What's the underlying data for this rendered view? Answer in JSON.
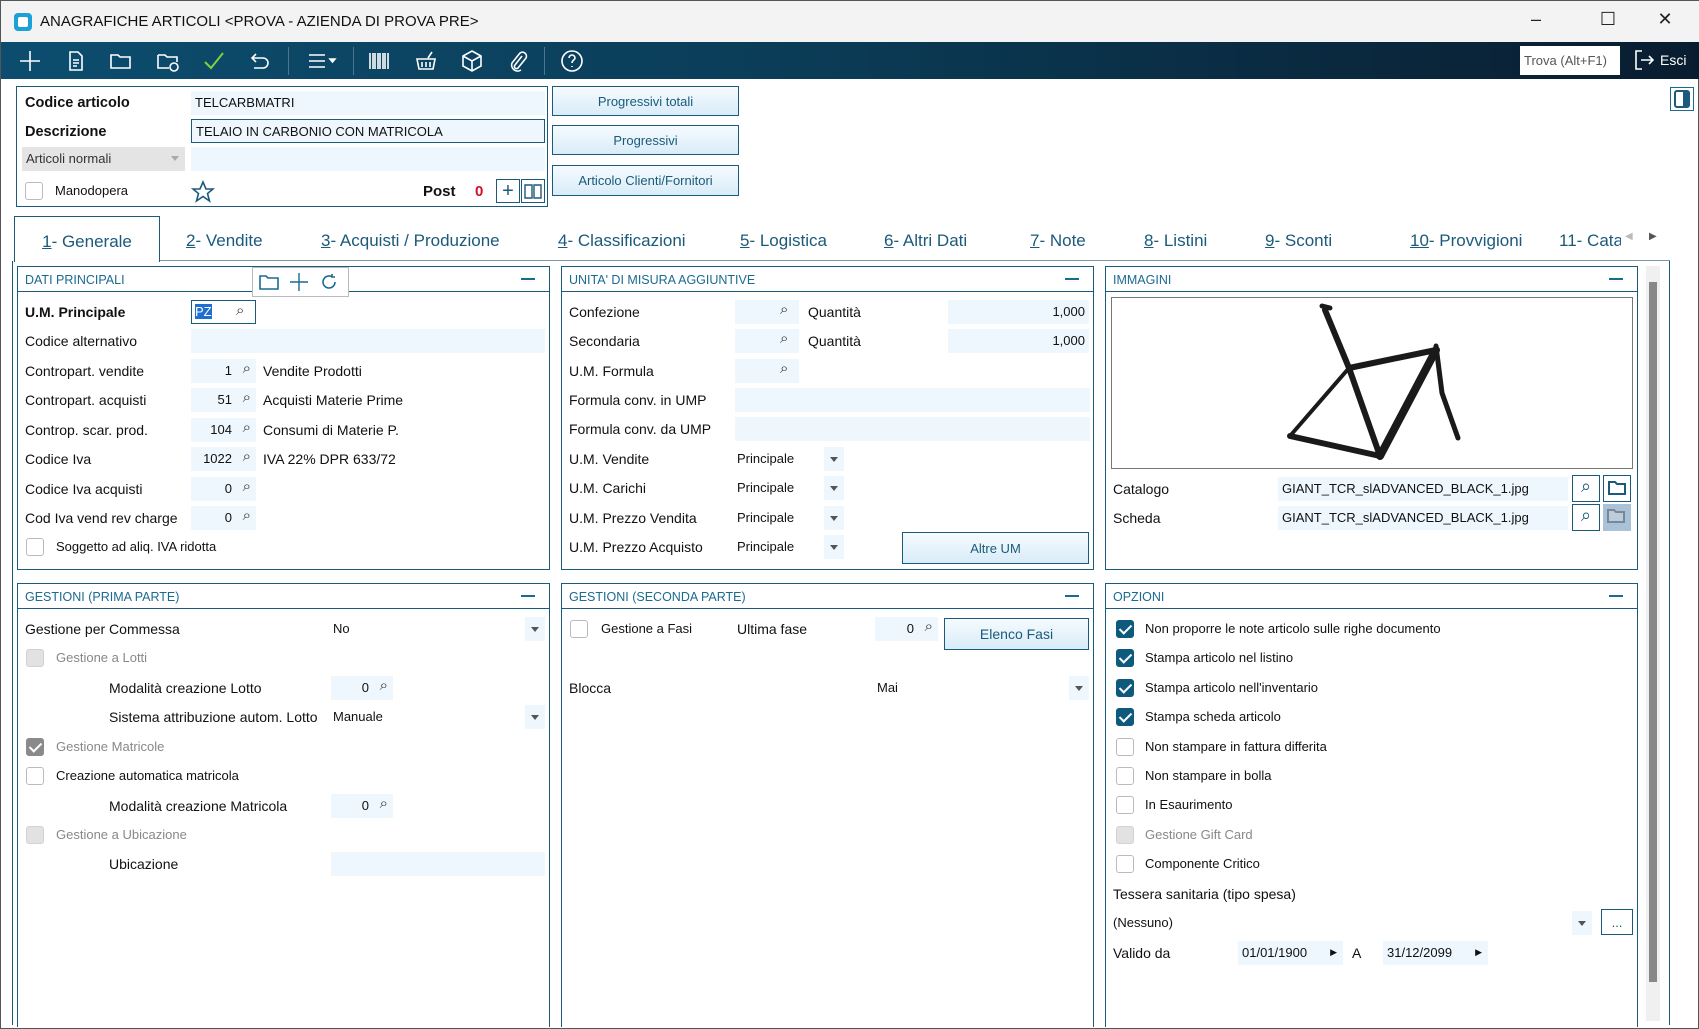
{
  "window": {
    "title": "ANAGRAFICHE ARTICOLI <PROVA - AZIENDA DI PROVA PRE>",
    "minimize": "–",
    "maximize": "☐",
    "close": "✕"
  },
  "toolbar": {
    "search_placeholder": "Trova (Alt+F1)",
    "exit_label": "Esci"
  },
  "header": {
    "code_label": "Codice articolo",
    "code_value": "TELCARBMATRI",
    "desc_label": "Descrizione",
    "desc_value": "TELAIO IN CARBONIO CON MATRICOLA",
    "type_value": "Articoli normali",
    "labor_label": "Manodopera",
    "labor_checked": false,
    "post_label": "Post",
    "post_count": "0",
    "buttons": [
      "Progressivi totali",
      "Progressivi",
      "Articolo Clienti/Fornitori"
    ]
  },
  "tabs": [
    {
      "key": "1",
      "label": " - Generale",
      "active": true
    },
    {
      "key": "2",
      "label": " - Vendite"
    },
    {
      "key": "3",
      "label": " - Acquisti / Produzione"
    },
    {
      "key": "4",
      "label": " - Classificazioni"
    },
    {
      "key": "5",
      "label": " - Logistica"
    },
    {
      "key": "6",
      "label": " - Altri Dati"
    },
    {
      "key": "7",
      "label": " - Note"
    },
    {
      "key": "8",
      "label": " - Listini"
    },
    {
      "key": "9",
      "label": " - Sconti"
    },
    {
      "key": "10",
      "label": " - Provvigioni"
    },
    {
      "key": "11",
      "label": " - Cata"
    }
  ],
  "dati_principali": {
    "title": "DATI PRINCIPALI",
    "um_label": "U.M. Principale",
    "um_value": "PZ",
    "alt_label": "Codice alternativo",
    "alt_value": "",
    "rows": [
      {
        "label": "Contropart. vendite",
        "code": "1",
        "desc": "Vendite Prodotti"
      },
      {
        "label": "Contropart. acquisti",
        "code": "51",
        "desc": "Acquisti Materie Prime"
      },
      {
        "label": "Controp. scar. prod.",
        "code": "104",
        "desc": "Consumi di Materie P."
      },
      {
        "label": "Codice Iva",
        "code": "1022",
        "desc": "IVA 22% DPR 633/72"
      },
      {
        "label": "Codice Iva acquisti",
        "code": "0",
        "desc": ""
      },
      {
        "label": "Cod Iva vend rev charge",
        "code": "0",
        "desc": ""
      }
    ],
    "reduced_vat_label": "Soggetto ad aliq. IVA ridotta"
  },
  "unita_misura": {
    "title": "UNITA' DI MISURA AGGIUNTIVE",
    "confezione_label": "Confezione",
    "secondaria_label": "Secondaria",
    "qty_label": "Quantità",
    "confezione_qty": "1,000",
    "secondaria_qty": "1,000",
    "formula_label": "U.M. Formula",
    "conv_in_label": "Formula conv. in UMP",
    "conv_da_label": "Formula conv. da UMP",
    "selects": [
      {
        "label": "U.M. Vendite",
        "value": "Principale"
      },
      {
        "label": "U.M. Carichi",
        "value": "Principale"
      },
      {
        "label": "U.M. Prezzo Vendita",
        "value": "Principale"
      },
      {
        "label": "U.M. Prezzo Acquisto",
        "value": "Principale"
      }
    ],
    "other_button": "Altre UM"
  },
  "immagini": {
    "title": "IMMAGINI",
    "catalogo_label": "Catalogo",
    "catalogo_file": "GIANT_TCR_slADVANCED_BLACK_1.jpg",
    "scheda_label": "Scheda",
    "scheda_file": "GIANT_TCR_slADVANCED_BLACK_1.jpg"
  },
  "gestioni1": {
    "title": "GESTIONI (PRIMA PARTE)",
    "commessa_label": "Gestione per Commessa",
    "commessa_value": "No",
    "lotti_label": "Gestione a Lotti",
    "mod_lotto_label": "Modalità creazione Lotto",
    "mod_lotto_value": "0",
    "sist_lotto_label": "Sistema attribuzione autom. Lotto",
    "sist_lotto_value": "Manuale",
    "matricole_label": "Gestione Matricole",
    "auto_matr_label": "Creazione automatica matricola",
    "mod_matr_label": "Modalità creazione Matricola",
    "mod_matr_value": "0",
    "ubic_label": "Gestione a Ubicazione",
    "ubicazione_label": "Ubicazione",
    "ubicazione_value": ""
  },
  "gestioni2": {
    "title": "GESTIONI (SECONDA PARTE)",
    "fasi_label": "Gestione a Fasi",
    "ultima_label": "Ultima fase",
    "ultima_value": "0",
    "fasi_button": "Elenco Fasi",
    "blocca_label": "Blocca",
    "blocca_value": "Mai"
  },
  "opzioni": {
    "title": "OPZIONI",
    "checks": [
      {
        "label": "Non proporre le note articolo sulle righe documento",
        "state": "on"
      },
      {
        "label": "Stampa articolo nel listino",
        "state": "on"
      },
      {
        "label": "Stampa articolo nell'inventario",
        "state": "on"
      },
      {
        "label": "Stampa scheda articolo",
        "state": "on"
      },
      {
        "label": "Non stampare in fattura differita",
        "state": "off"
      },
      {
        "label": "Non stampare in bolla",
        "state": "off"
      },
      {
        "label": "In Esaurimento",
        "state": "off"
      },
      {
        "label": "Gestione Gift Card",
        "state": "dis"
      },
      {
        "label": "Componente Critico",
        "state": "off"
      }
    ],
    "tessera_label": "Tessera sanitaria (tipo spesa)",
    "tessera_value": "(Nessuno)",
    "more_button": "...",
    "valido_label": "Valido da",
    "date_from": "01/01/1900",
    "a_label": "A",
    "date_to": "31/12/2099"
  },
  "colors": {
    "accent": "#1b5a7a",
    "toolbar_start": "#0c4d6f",
    "toolbar_end": "#091c2f",
    "post_count": "#d0102a"
  }
}
